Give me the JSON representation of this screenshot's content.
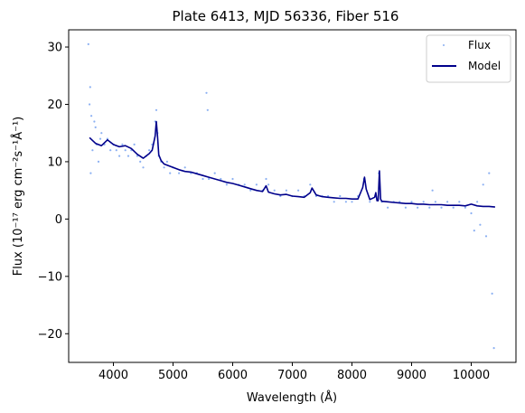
{
  "chart_data": {
    "type": "scatter",
    "title": "Plate 6413, MJD 56336, Fiber 516",
    "xlabel": "Wavelength (Å)",
    "ylabel": "Flux (10⁻¹⁷ erg cm⁻²s⁻¹Å⁻¹)",
    "xlim": [
      3250,
      10750
    ],
    "ylim": [
      -25,
      33
    ],
    "xticks": [
      4000,
      5000,
      6000,
      7000,
      8000,
      9000,
      10000
    ],
    "yticks": [
      -20,
      -10,
      0,
      10,
      20,
      30
    ],
    "grid": false,
    "legend_position": "top-right",
    "series": [
      {
        "name": "Flux",
        "kind": "scatter",
        "color": "#6495ed",
        "x": [
          3580,
          3600,
          3610,
          3620,
          3630,
          3650,
          3680,
          3700,
          3720,
          3750,
          3780,
          3800,
          3850,
          3900,
          3950,
          4000,
          4050,
          4100,
          4150,
          4200,
          4250,
          4300,
          4350,
          4400,
          4450,
          4500,
          4550,
          4600,
          4650,
          4700,
          4720,
          4740,
          4760,
          4800,
          4850,
          4900,
          4950,
          5000,
          5100,
          5200,
          5300,
          5400,
          5500,
          5560,
          5580,
          5600,
          5700,
          5800,
          5900,
          6000,
          6100,
          6200,
          6300,
          6400,
          6500,
          6560,
          6600,
          6700,
          6800,
          6900,
          7000,
          7100,
          7200,
          7300,
          7400,
          7500,
          7600,
          7700,
          7800,
          7900,
          8000,
          8100,
          8200,
          8300,
          8400,
          8450,
          8500,
          8600,
          8700,
          8800,
          8900,
          9000,
          9100,
          9200,
          9300,
          9350,
          9400,
          9500,
          9600,
          9700,
          9800,
          9900,
          10000,
          10050,
          10100,
          10150,
          10200,
          10250,
          10300,
          10350,
          10380
        ],
        "y": [
          30.5,
          20,
          23,
          8,
          18,
          12,
          17,
          16,
          13,
          10,
          14,
          15,
          13,
          14,
          12,
          13,
          12,
          11,
          13,
          12,
          11,
          12,
          13,
          11,
          10,
          9,
          11,
          12,
          13,
          17,
          19,
          15,
          11,
          10,
          9,
          10,
          8,
          9,
          8,
          9,
          8,
          8,
          7,
          22,
          19,
          7,
          8,
          7,
          6,
          7,
          6,
          6,
          5,
          6,
          5,
          7,
          6,
          5,
          4,
          5,
          4,
          5,
          4,
          6,
          4,
          4,
          4,
          3,
          4,
          3,
          3,
          4,
          7,
          3,
          4,
          8,
          3,
          2,
          3,
          3,
          2,
          3,
          2,
          3,
          2,
          5,
          3,
          2,
          3,
          2,
          3,
          2,
          1,
          -2,
          3,
          -1,
          6,
          -3,
          8,
          -13,
          -22.5
        ]
      },
      {
        "name": "Model",
        "kind": "line",
        "color": "#00008b",
        "x": [
          3600,
          3700,
          3800,
          3900,
          4000,
          4100,
          4200,
          4300,
          4400,
          4500,
          4600,
          4650,
          4700,
          4720,
          4740,
          4760,
          4800,
          4850,
          4900,
          5000,
          5100,
          5200,
          5300,
          5400,
          5500,
          5600,
          5700,
          5800,
          5900,
          6000,
          6100,
          6200,
          6300,
          6400,
          6500,
          6560,
          6600,
          6700,
          6800,
          6900,
          7000,
          7100,
          7200,
          7300,
          7330,
          7400,
          7500,
          7600,
          7700,
          7800,
          7900,
          8000,
          8100,
          8180,
          8210,
          8240,
          8300,
          8380,
          8400,
          8420,
          8440,
          8460,
          8480,
          8500,
          8600,
          8700,
          8800,
          8900,
          9000,
          9100,
          9200,
          9300,
          9400,
          9500,
          9600,
          9700,
          9800,
          9900,
          10000,
          10100,
          10200,
          10300,
          10400
        ],
        "y": [
          14.2,
          13.2,
          12.8,
          13.8,
          13.0,
          12.6,
          12.8,
          12.3,
          11.3,
          10.6,
          11.4,
          12.0,
          14.5,
          17.0,
          14.5,
          11.2,
          10.2,
          9.6,
          9.4,
          9.0,
          8.6,
          8.3,
          8.2,
          7.9,
          7.6,
          7.3,
          7.0,
          6.7,
          6.4,
          6.2,
          5.9,
          5.6,
          5.3,
          5.0,
          4.8,
          5.8,
          4.7,
          4.4,
          4.2,
          4.3,
          4.0,
          3.9,
          3.8,
          4.6,
          5.4,
          4.2,
          3.9,
          3.8,
          3.7,
          3.6,
          3.6,
          3.5,
          3.5,
          5.5,
          7.3,
          5.2,
          3.4,
          3.8,
          4.6,
          3.2,
          3.2,
          8.4,
          3.5,
          3.1,
          3.0,
          2.9,
          2.8,
          2.7,
          2.7,
          2.6,
          2.6,
          2.5,
          2.5,
          2.5,
          2.4,
          2.4,
          2.4,
          2.3,
          2.6,
          2.3,
          2.2,
          2.2,
          2.1
        ]
      }
    ]
  }
}
